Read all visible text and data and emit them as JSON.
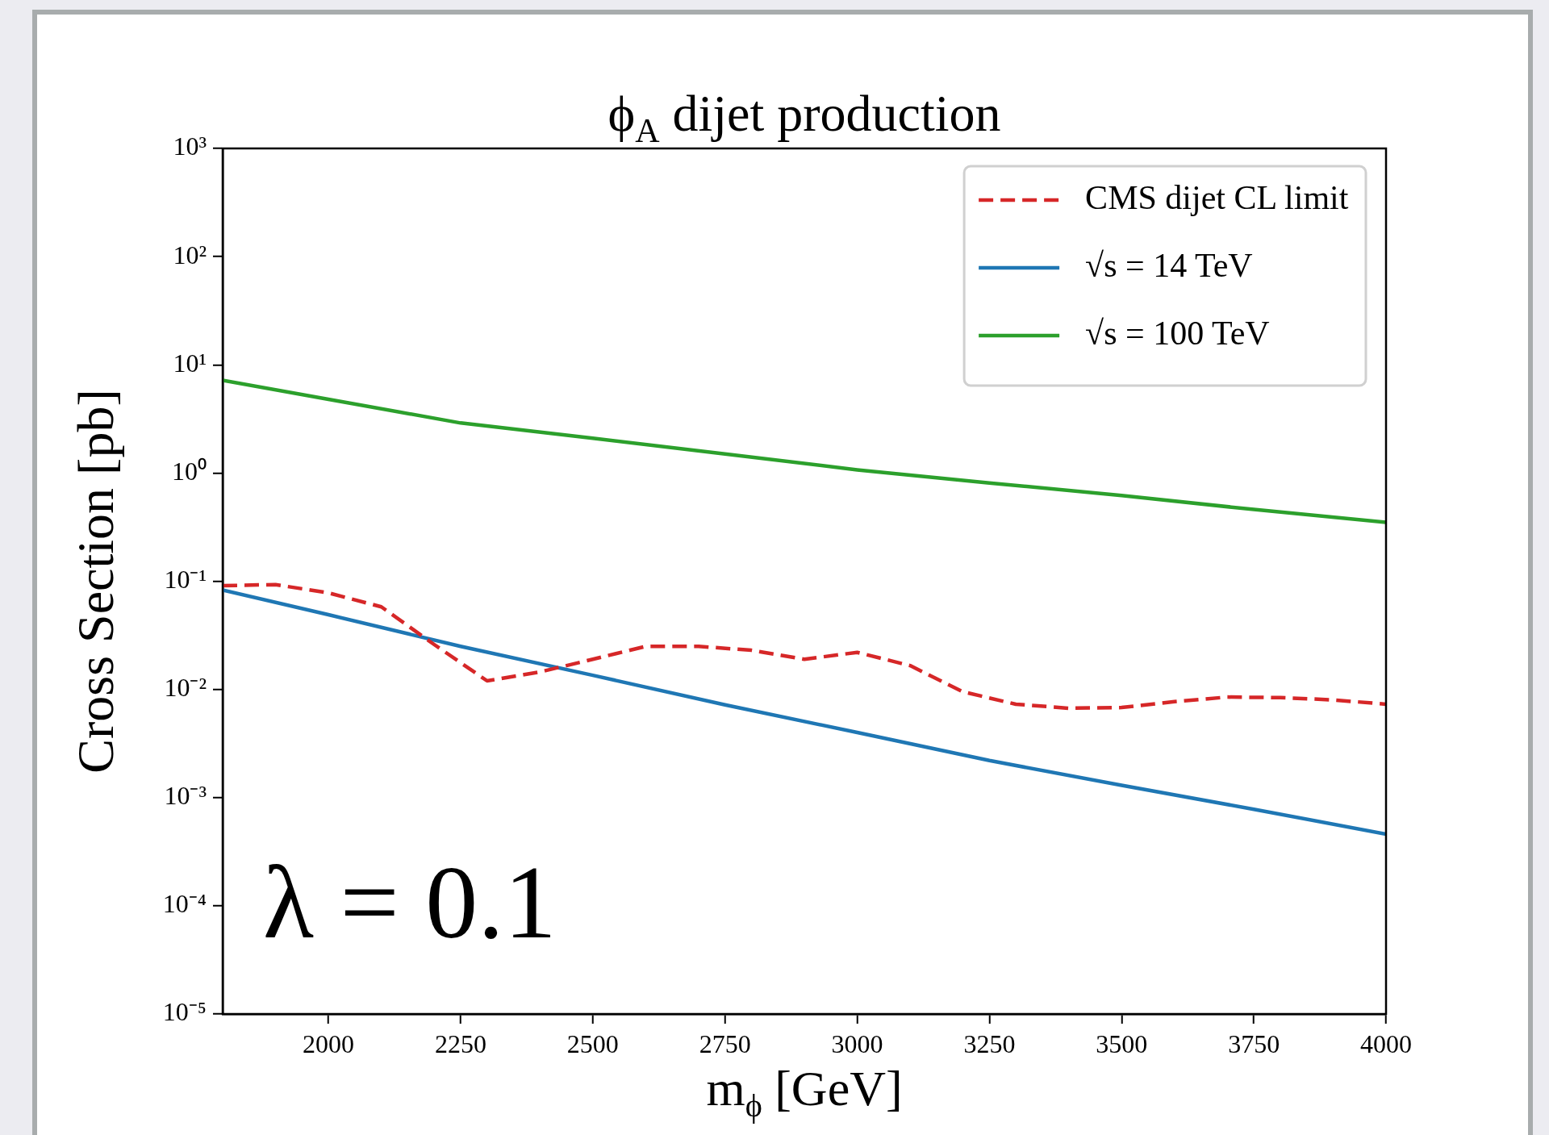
{
  "chart_data": {
    "type": "line",
    "title": "ϕ$_{A}$ dijet production",
    "xlabel": "m$_{ϕ}$ [GeV]",
    "ylabel": "Cross Section [pb]",
    "log": "y",
    "grid": false,
    "legend": "top right",
    "marker": "none",
    "xlim": [
      1800,
      4000
    ],
    "xticks": [
      2000,
      2250,
      2500,
      2750,
      3000,
      3250,
      3500,
      3750,
      4000
    ],
    "ylim": [
      1e-05,
      1000
    ],
    "yticks": [
      {
        "value": 1e-05,
        "label": "10⁻⁵"
      },
      {
        "value": 0.0001,
        "label": "10⁻⁴"
      },
      {
        "value": 0.001,
        "label": "10⁻³"
      },
      {
        "value": 0.01,
        "label": "10⁻²"
      },
      {
        "value": 0.1,
        "label": "10⁻¹"
      },
      {
        "value": 1,
        "label": "10⁰"
      },
      {
        "value": 10,
        "label": "10¹"
      },
      {
        "value": 100,
        "label": "10²"
      },
      {
        "value": 1000,
        "label": "10³"
      }
    ],
    "annotations": [
      "λ = 0.1"
    ],
    "series": [
      {
        "name": "CMS dijet CL limit",
        "color": "#d62728",
        "line_style": "dashed",
        "x": [
          1800,
          1900,
          2000,
          2100,
          2200,
          2300,
          2400,
          2500,
          2600,
          2700,
          2800,
          2900,
          3000,
          3100,
          3200,
          3300,
          3400,
          3500,
          3600,
          3700,
          3800,
          3900,
          4000
        ],
        "values": [
          0.091,
          0.093,
          0.078,
          0.058,
          0.026,
          0.012,
          0.0145,
          0.019,
          0.025,
          0.025,
          0.023,
          0.019,
          0.022,
          0.0166,
          0.0095,
          0.0073,
          0.0067,
          0.0068,
          0.0077,
          0.0085,
          0.0084,
          0.008,
          0.0073
        ]
      },
      {
        "name": "√s = 14 TeV",
        "color": "#1f77b4",
        "line_style": "solid",
        "x": [
          1800,
          2000,
          2250,
          2500,
          2750,
          3000,
          3250,
          3500,
          3750,
          4000
        ],
        "values": [
          0.083,
          0.049,
          0.025,
          0.0135,
          0.0072,
          0.004,
          0.0022,
          0.0013,
          0.00078,
          0.00046
        ]
      },
      {
        "name": "√s = 100 TeV",
        "color": "#2ca02c",
        "line_style": "solid",
        "x": [
          1800,
          2000,
          2250,
          2500,
          2750,
          3000,
          3250,
          3500,
          3750,
          4000
        ],
        "values": [
          7.2,
          4.8,
          2.9,
          2.1,
          1.5,
          1.07,
          0.81,
          0.62,
          0.46,
          0.35
        ]
      }
    ]
  }
}
